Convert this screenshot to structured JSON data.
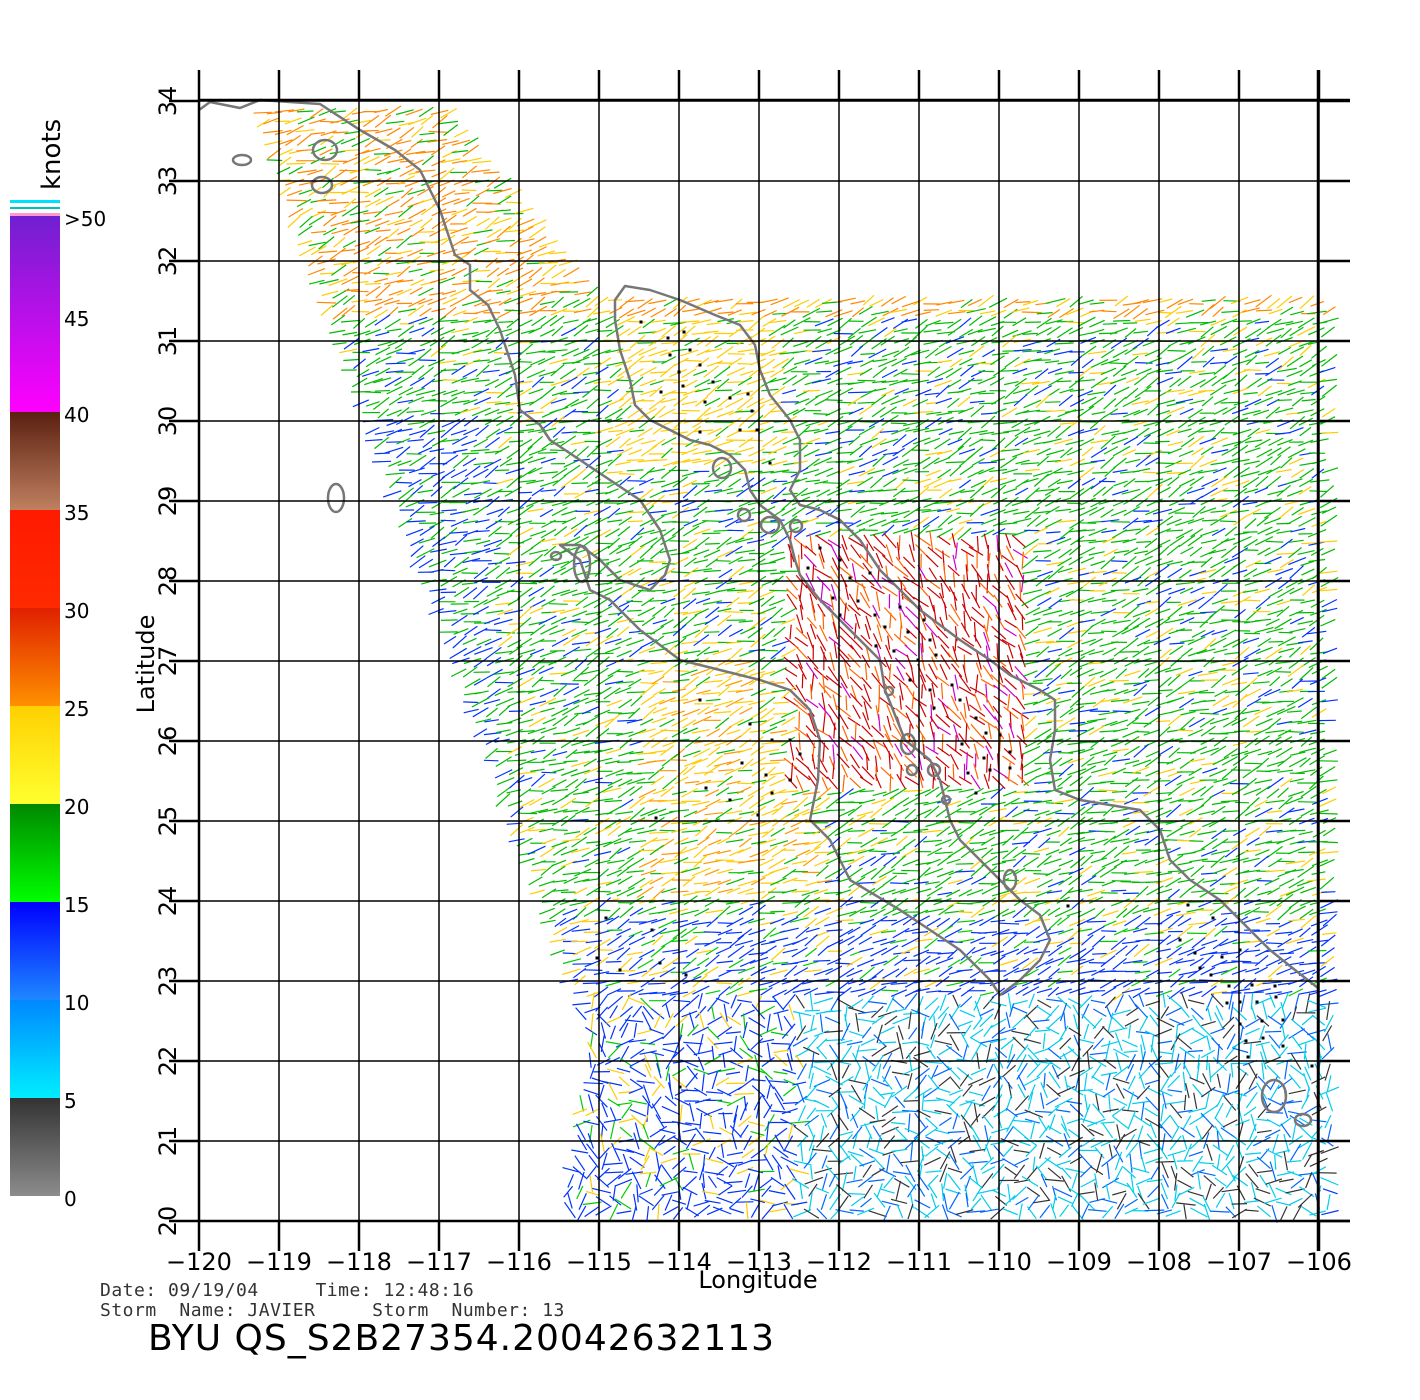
{
  "legend": {
    "unit": "knots",
    "bands": [
      {
        "from": 0,
        "to": 5,
        "top": "#333333",
        "bottom": "#8c8c8c"
      },
      {
        "from": 5,
        "to": 10,
        "top": "#0088ff",
        "bottom": "#00eeff"
      },
      {
        "from": 10,
        "to": 15,
        "top": "#0000ff",
        "bottom": "#1e88ff"
      },
      {
        "from": 15,
        "to": 20,
        "top": "#008800",
        "bottom": "#00ff00"
      },
      {
        "from": 20,
        "to": 25,
        "top": "#ffd000",
        "bottom": "#ffff30"
      },
      {
        "from": 25,
        "to": 30,
        "top": "#e02000",
        "bottom": "#ff9000"
      },
      {
        "from": 30,
        "to": 35,
        "top": "#ff1a00",
        "bottom": "#ff2a00"
      },
      {
        "from": 35,
        "to": 40,
        "top": "#5a2010",
        "bottom": "#c08060"
      },
      {
        "from": 40,
        "to": 50,
        "top": "#7020d0",
        "bottom": "#ff00ff"
      }
    ],
    "labels": [
      {
        "value": 0,
        "text": "0"
      },
      {
        "value": 5,
        "text": "5"
      },
      {
        "value": 10,
        "text": "10"
      },
      {
        "value": 15,
        "text": "15"
      },
      {
        "value": 20,
        "text": "20"
      },
      {
        "value": 25,
        "text": "25"
      },
      {
        "value": 30,
        "text": "30"
      },
      {
        "value": 35,
        "text": "35"
      },
      {
        "value": 40,
        "text": "40"
      },
      {
        "value": 45,
        "text": "45"
      },
      {
        "value": 50,
        "text": ">50"
      }
    ]
  },
  "map": {
    "xlabel": "Longitude",
    "ylabel": "Latitude",
    "lon_range": [
      -120,
      -105.4
    ],
    "lat_range": [
      20,
      34
    ],
    "lon_ticks": [
      "−120",
      "−119",
      "−118",
      "−117",
      "−116",
      "−115",
      "−114",
      "−113",
      "−112",
      "−111",
      "−110",
      "−109",
      "−108",
      "−107",
      "−106"
    ],
    "lat_ticks": [
      "20",
      "21",
      "22",
      "23",
      "24",
      "25",
      "26",
      "27",
      "28",
      "29",
      "30",
      "31",
      "32",
      "33",
      "34"
    ],
    "grid": true,
    "coastline_color": "#777777",
    "rain_flag_color": "#000000"
  },
  "meta": {
    "date_label": "Date:",
    "date": "09/19/04",
    "time_label": "Time:",
    "time": "12:48:16",
    "storm_name_label": "Storm  Name:",
    "storm_name": "JAVIER",
    "storm_number_label": "Storm  Number:",
    "storm_number": "13"
  },
  "footer": {
    "title": "BYU  QS_S2B27354.20042632113"
  }
}
